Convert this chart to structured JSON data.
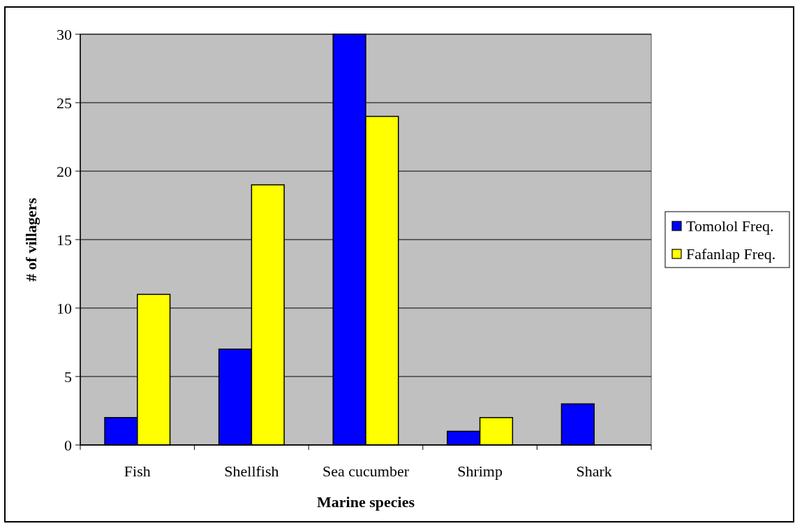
{
  "chart_data": {
    "type": "bar",
    "xlabel": "Marine species",
    "ylabel": "# of villagers",
    "categories": [
      "Fish",
      "Shellfish",
      "Sea cucumber",
      "Shrimp",
      "Shark"
    ],
    "series": [
      {
        "name": "Tomolol Freq.",
        "color": "#0000ff",
        "values": [
          2,
          7,
          30,
          1,
          3
        ]
      },
      {
        "name": "Fafanlap Freq.",
        "color": "#ffff00",
        "values": [
          11,
          19,
          24,
          2,
          0
        ]
      }
    ],
    "ylim": [
      0,
      30
    ],
    "yticks": [
      0,
      5,
      10,
      15,
      20,
      25,
      30
    ],
    "grid": "y",
    "legend": "right"
  }
}
